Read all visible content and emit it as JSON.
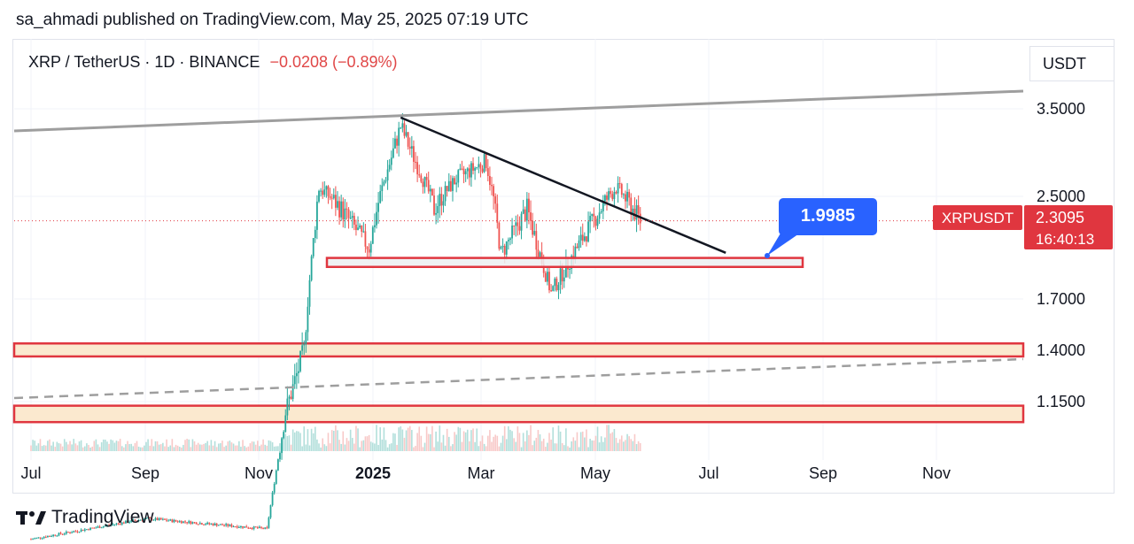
{
  "header": {
    "publisher_line": "sa_ahmadi published on TradingView.com, May 25, 2025 07:19 UTC"
  },
  "symbol": {
    "title": "XRP / TetherUS · 1D · BINANCE",
    "change": "−0.0208 (−0.89%)"
  },
  "price_scale": {
    "currency": "USDT"
  },
  "annotation": {
    "target_label": "1.9985"
  },
  "last_price": {
    "ticker": "XRPUSDT",
    "price": "2.3095",
    "countdown": "16:40:13"
  },
  "footer": {
    "brand": "TradingView",
    "logo": "tradingview-logo-icon"
  },
  "colors": {
    "up": "#26a69a",
    "down": "#ef5350",
    "zone_border": "#e0363f",
    "zone_fill": "#fbe9cf",
    "box_fill": "#eceef1",
    "callout": "#2962ff",
    "price_tag": "#e0363f"
  },
  "chart_data": {
    "type": "candlestick",
    "ylabel": "USDT",
    "x_ticks": [
      "Jul",
      "Sep",
      "Nov",
      "2025",
      "Mar",
      "May",
      "Jul",
      "Sep",
      "Nov"
    ],
    "y_ticks": [
      "3.5000",
      "2.5000",
      "1.7000",
      "1.4000",
      "1.1500"
    ],
    "y_tick_values": [
      3.5,
      2.5,
      1.7,
      1.4,
      1.15
    ],
    "approx_close_path": [
      {
        "x": "2024-07",
        "y": 0.48
      },
      {
        "x": "2024-09",
        "y": 0.58
      },
      {
        "x": "2024-11-05",
        "y": 0.53
      },
      {
        "x": "2024-11-15",
        "y": 1.1
      },
      {
        "x": "2024-11-25",
        "y": 1.4
      },
      {
        "x": "2024-12-03",
        "y": 2.6
      },
      {
        "x": "2024-12-15",
        "y": 2.4
      },
      {
        "x": "2024-12-30",
        "y": 2.1
      },
      {
        "x": "2025-01-16",
        "y": 3.3
      },
      {
        "x": "2025-02-03",
        "y": 2.4
      },
      {
        "x": "2025-02-15",
        "y": 2.7
      },
      {
        "x": "2025-03-03",
        "y": 2.9
      },
      {
        "x": "2025-03-11",
        "y": 2.05
      },
      {
        "x": "2025-03-25",
        "y": 2.4
      },
      {
        "x": "2025-04-07",
        "y": 1.75
      },
      {
        "x": "2025-04-25",
        "y": 2.2
      },
      {
        "x": "2025-05-12",
        "y": 2.6
      },
      {
        "x": "2025-05-25",
        "y": 2.31
      }
    ],
    "overlays": {
      "upper_trendline": "rising",
      "descending_trendline": {
        "from": [
          "2025-01-16",
          3.4
        ],
        "to": [
          "2025-07-10",
          2.06
        ]
      },
      "support_box": [
        1.95,
        2.02
      ],
      "zones": [
        [
          1.37,
          1.44
        ],
        [
          1.05,
          1.13
        ]
      ],
      "dashed_trendline": "rising"
    }
  }
}
